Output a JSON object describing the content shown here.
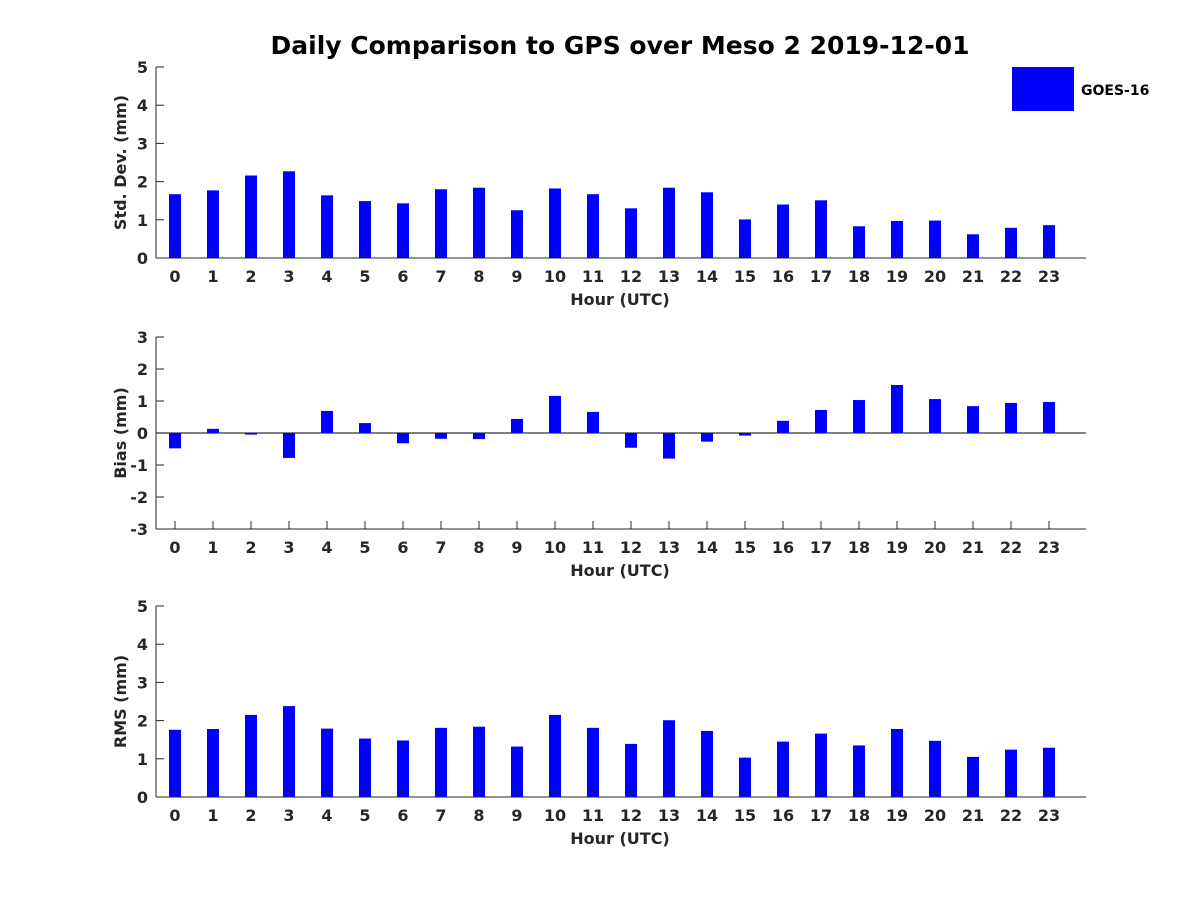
{
  "title": "Daily Comparison to GPS over Meso 2 2019-12-01",
  "legend": {
    "label": "GOES-16",
    "color": "#0000ff",
    "position": "top-right"
  },
  "chart_data": [
    {
      "type": "bar",
      "ylabel": "Std. Dev. (mm)",
      "xlabel": "Hour (UTC)",
      "ylim": [
        0,
        5
      ],
      "yticks": [
        0,
        1,
        2,
        3,
        4,
        5
      ],
      "categories": [
        "0",
        "1",
        "2",
        "3",
        "4",
        "5",
        "6",
        "7",
        "8",
        "9",
        "10",
        "11",
        "12",
        "13",
        "14",
        "15",
        "16",
        "17",
        "18",
        "19",
        "20",
        "21",
        "22",
        "23"
      ],
      "series": [
        {
          "name": "GOES-16",
          "values": [
            1.67,
            1.77,
            2.16,
            2.27,
            1.64,
            1.49,
            1.43,
            1.8,
            1.84,
            1.25,
            1.82,
            1.67,
            1.3,
            1.84,
            1.72,
            1.01,
            1.4,
            1.51,
            0.83,
            0.97,
            0.98,
            0.62,
            0.79,
            0.86
          ]
        }
      ]
    },
    {
      "type": "bar",
      "ylabel": "Bias (mm)",
      "xlabel": "Hour (UTC)",
      "ylim": [
        -3,
        3
      ],
      "yticks": [
        -3,
        -2,
        -1,
        0,
        1,
        2,
        3
      ],
      "categories": [
        "0",
        "1",
        "2",
        "3",
        "4",
        "5",
        "6",
        "7",
        "8",
        "9",
        "10",
        "11",
        "12",
        "13",
        "14",
        "15",
        "16",
        "17",
        "18",
        "19",
        "20",
        "21",
        "22",
        "23"
      ],
      "series": [
        {
          "name": "GOES-16",
          "values": [
            -0.48,
            0.13,
            -0.05,
            -0.78,
            0.69,
            0.31,
            -0.32,
            -0.18,
            -0.19,
            0.44,
            1.16,
            0.66,
            -0.46,
            -0.8,
            -0.27,
            -0.08,
            0.38,
            0.72,
            1.03,
            1.5,
            1.06,
            0.84,
            0.94,
            0.97
          ]
        }
      ]
    },
    {
      "type": "bar",
      "ylabel": "RMS (mm)",
      "xlabel": "Hour (UTC)",
      "ylim": [
        0,
        5
      ],
      "yticks": [
        0,
        1,
        2,
        3,
        4,
        5
      ],
      "categories": [
        "0",
        "1",
        "2",
        "3",
        "4",
        "5",
        "6",
        "7",
        "8",
        "9",
        "10",
        "11",
        "12",
        "13",
        "14",
        "15",
        "16",
        "17",
        "18",
        "19",
        "20",
        "21",
        "22",
        "23"
      ],
      "series": [
        {
          "name": "GOES-16",
          "values": [
            1.76,
            1.78,
            2.15,
            2.38,
            1.79,
            1.53,
            1.48,
            1.81,
            1.84,
            1.32,
            2.15,
            1.81,
            1.39,
            2.01,
            1.73,
            1.03,
            1.45,
            1.66,
            1.35,
            1.78,
            1.47,
            1.05,
            1.24,
            1.29
          ]
        }
      ]
    }
  ]
}
